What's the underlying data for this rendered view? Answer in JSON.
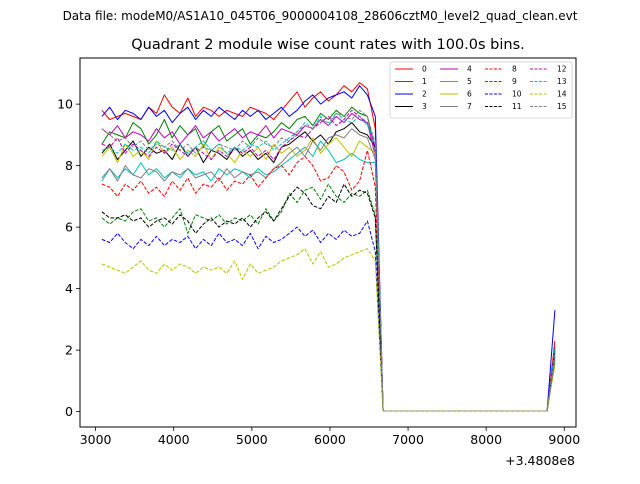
{
  "header": {
    "file_label": "Data file: modeM0/AS1A10_045T06_9000004108_28606cztM0_level2_quad_clean.evt"
  },
  "chart_data": {
    "type": "line",
    "title": "Quadrant 2 module wise count rates with 100.0s bins.",
    "xlabel": "",
    "ylabel": "",
    "x_offset_label": "+3.4808e8",
    "xlim": [
      2800,
      9150
    ],
    "ylim": [
      -0.5,
      11.5
    ],
    "xticks": [
      3000,
      4000,
      5000,
      6000,
      7000,
      8000,
      9000
    ],
    "xtick_labels": [
      "3000",
      "4000",
      "5000",
      "6000",
      "7000",
      "8000",
      "9000"
    ],
    "yticks": [
      0,
      2,
      4,
      6,
      8,
      10
    ],
    "ytick_labels": [
      "0",
      "2",
      "4",
      "6",
      "8",
      "10"
    ],
    "grid": false,
    "legend_placement": "upper-right, 4 columns",
    "x": [
      3080,
      3180,
      3280,
      3380,
      3480,
      3580,
      3680,
      3780,
      3880,
      3980,
      4080,
      4180,
      4280,
      4380,
      4480,
      4580,
      4680,
      4780,
      4880,
      4980,
      5080,
      5180,
      5280,
      5380,
      5480,
      5580,
      5680,
      5780,
      5880,
      5980,
      6080,
      6180,
      6280,
      6380,
      6480,
      6580,
      6680,
      6780,
      8780,
      8880
    ],
    "series": [
      {
        "name": "0",
        "color": "#ff0000",
        "dash": "solid",
        "values": [
          9.8,
          9.5,
          9.6,
          9.7,
          9.6,
          9.5,
          9.9,
          9.7,
          10.3,
          9.9,
          9.7,
          10.2,
          9.6,
          9.9,
          9.8,
          9.6,
          9.8,
          9.7,
          9.6,
          9.9,
          9.8,
          9.7,
          9.5,
          9.8,
          10.1,
          10.4,
          9.9,
          10.2,
          10.4,
          10.1,
          10.3,
          10.6,
          10.4,
          10.7,
          10.5,
          9.2,
          0.02,
          0.02,
          0.02,
          2.3
        ]
      },
      {
        "name": "1",
        "color": "#008000",
        "dash": "solid",
        "values": [
          8.7,
          9.1,
          9.0,
          8.9,
          9.4,
          9.2,
          8.7,
          9.0,
          9.5,
          8.9,
          9.3,
          9.0,
          9.2,
          8.6,
          9.1,
          9.3,
          8.8,
          9.0,
          9.2,
          8.7,
          9.0,
          8.9,
          9.1,
          9.4,
          9.2,
          9.5,
          9.6,
          9.3,
          9.7,
          9.5,
          9.8,
          9.6,
          9.9,
          9.7,
          9.6,
          8.5,
          0.02,
          0.02,
          0.02,
          2.1
        ]
      },
      {
        "name": "2",
        "color": "#0000ff",
        "dash": "solid",
        "values": [
          9.6,
          9.9,
          9.5,
          9.8,
          9.7,
          9.5,
          9.9,
          9.6,
          9.8,
          9.4,
          9.7,
          9.9,
          9.5,
          9.8,
          9.6,
          9.9,
          9.7,
          9.5,
          9.8,
          9.6,
          9.8,
          9.5,
          9.7,
          9.9,
          9.6,
          9.8,
          10.1,
          10.3,
          10.0,
          10.2,
          10.3,
          10.4,
          10.2,
          10.6,
          10.3,
          9.6,
          0.02,
          0.02,
          0.02,
          3.3
        ]
      },
      {
        "name": "3",
        "color": "#000000",
        "dash": "solid",
        "values": [
          8.4,
          8.7,
          8.2,
          8.5,
          8.8,
          8.3,
          8.6,
          8.4,
          8.5,
          8.2,
          8.7,
          8.3,
          8.6,
          8.1,
          8.5,
          8.4,
          8.2,
          8.6,
          8.3,
          8.5,
          8.2,
          8.4,
          8.1,
          8.6,
          8.7,
          8.9,
          9.1,
          8.8,
          9.0,
          8.7,
          9.1,
          9.2,
          9.4,
          9.1,
          9.0,
          8.6,
          0.02,
          0.02,
          0.02,
          1.8
        ]
      },
      {
        "name": "4",
        "color": "#bf00bf",
        "dash": "solid",
        "values": [
          9.2,
          9.0,
          9.3,
          8.9,
          9.1,
          9.0,
          8.8,
          9.2,
          8.9,
          9.1,
          8.7,
          9.0,
          9.3,
          8.9,
          9.1,
          8.8,
          9.0,
          9.2,
          8.9,
          9.1,
          9.0,
          9.3,
          8.9,
          9.2,
          9.1,
          9.0,
          9.3,
          9.2,
          9.5,
          9.3,
          9.6,
          9.4,
          9.7,
          9.5,
          9.4,
          8.3,
          0.02,
          0.02,
          0.02,
          2.0
        ]
      },
      {
        "name": "5",
        "color": "#00bfbf",
        "dash": "solid",
        "values": [
          7.5,
          7.9,
          7.6,
          7.9,
          7.7,
          8.1,
          7.7,
          7.9,
          7.6,
          7.8,
          7.6,
          7.9,
          7.7,
          7.8,
          7.5,
          7.9,
          7.7,
          7.9,
          7.8,
          7.6,
          7.9,
          7.7,
          7.8,
          8.0,
          8.2,
          8.4,
          8.6,
          8.3,
          8.8,
          8.5,
          8.1,
          8.2,
          8.4,
          8.2,
          8.1,
          8.1,
          0.02,
          0.02,
          0.02,
          1.9
        ]
      },
      {
        "name": "6",
        "color": "#bfbf00",
        "dash": "solid",
        "values": [
          8.3,
          8.6,
          8.1,
          8.7,
          8.3,
          8.5,
          8.2,
          8.8,
          8.4,
          8.6,
          8.2,
          8.5,
          8.3,
          8.7,
          8.2,
          8.6,
          8.4,
          8.1,
          8.5,
          8.3,
          8.6,
          8.2,
          8.7,
          8.4,
          8.6,
          8.3,
          8.5,
          8.9,
          8.4,
          8.7,
          8.9,
          8.6,
          8.3,
          8.8,
          8.6,
          8.4,
          0.02,
          0.02,
          0.02,
          1.7
        ]
      },
      {
        "name": "7",
        "color": "#808080",
        "dash": "solid",
        "values": [
          7.6,
          7.9,
          7.5,
          8.0,
          7.7,
          7.6,
          7.9,
          7.8,
          7.5,
          7.8,
          7.7,
          7.9,
          7.6,
          7.7,
          7.8,
          7.5,
          7.9,
          7.6,
          7.8,
          7.7,
          7.8,
          7.6,
          7.9,
          8.1,
          8.4,
          8.6,
          8.3,
          8.8,
          8.5,
          8.9,
          9.0,
          8.9,
          9.2,
          9.0,
          8.9,
          8.2,
          0.02,
          0.02,
          0.02,
          1.6
        ]
      },
      {
        "name": "8",
        "color": "#ff0000",
        "dash": "dashed",
        "values": [
          7.4,
          7.3,
          7.0,
          7.4,
          7.2,
          7.5,
          7.1,
          7.3,
          7.0,
          7.5,
          7.2,
          7.6,
          7.1,
          7.4,
          7.3,
          7.6,
          7.2,
          7.5,
          7.4,
          7.7,
          7.3,
          7.6,
          7.9,
          8.0,
          7.7,
          8.1,
          8.3,
          8.0,
          7.5,
          7.6,
          8.0,
          7.8,
          7.2,
          7.5,
          8.5,
          7.3,
          0.02,
          0.02,
          0.02,
          1.9
        ]
      },
      {
        "name": "9",
        "color": "#008000",
        "dash": "dashed",
        "values": [
          6.3,
          6.1,
          6.3,
          6.2,
          6.5,
          6.6,
          6.2,
          6.3,
          6.0,
          6.3,
          6.6,
          5.8,
          6.4,
          6.3,
          6.2,
          6.4,
          6.1,
          6.3,
          6.2,
          6.4,
          6.1,
          6.6,
          6.2,
          6.5,
          7.1,
          6.8,
          7.2,
          7.3,
          6.9,
          7.4,
          7.0,
          6.8,
          7.1,
          7.0,
          7.2,
          6.4,
          0.02,
          0.02,
          0.02,
          1.7
        ]
      },
      {
        "name": "10",
        "color": "#0000ff",
        "dash": "dashed",
        "values": [
          5.6,
          5.5,
          5.8,
          5.5,
          5.3,
          5.6,
          5.4,
          5.7,
          5.4,
          5.6,
          5.5,
          5.7,
          5.3,
          5.6,
          5.4,
          5.8,
          5.5,
          5.6,
          5.4,
          5.8,
          5.3,
          5.7,
          5.5,
          5.6,
          5.8,
          6.0,
          5.7,
          5.9,
          5.5,
          5.8,
          5.6,
          5.9,
          5.7,
          5.8,
          6.2,
          5.2,
          0.02,
          0.02,
          0.02,
          1.9
        ]
      },
      {
        "name": "11",
        "color": "#000000",
        "dash": "dashed",
        "values": [
          6.5,
          6.3,
          6.3,
          6.4,
          6.2,
          6.3,
          6.0,
          6.2,
          6.3,
          6.1,
          6.4,
          6.2,
          5.8,
          6.1,
          6.3,
          6.0,
          6.2,
          6.1,
          6.3,
          6.0,
          6.3,
          6.5,
          6.2,
          6.6,
          7.0,
          7.3,
          7.1,
          6.7,
          6.6,
          7.0,
          6.8,
          7.4,
          7.0,
          7.2,
          7.1,
          6.3,
          0.02,
          0.02,
          0.02,
          2.0
        ]
      },
      {
        "name": "12",
        "color": "#bf00bf",
        "dash": "dashed",
        "values": [
          8.7,
          8.6,
          8.9,
          8.4,
          8.7,
          8.5,
          8.3,
          8.6,
          8.4,
          8.7,
          8.5,
          8.3,
          8.6,
          8.4,
          8.2,
          8.5,
          8.3,
          8.6,
          8.4,
          8.6,
          8.3,
          8.5,
          8.2,
          8.6,
          8.8,
          9.0,
          8.9,
          9.2,
          9.4,
          9.6,
          9.3,
          9.5,
          9.8,
          9.6,
          9.4,
          8.6,
          0.02,
          0.02,
          0.02,
          2.1
        ]
      },
      {
        "name": "13",
        "color": "#00bfbf",
        "dash": "dashed",
        "values": [
          8.5,
          8.6,
          8.4,
          8.7,
          8.5,
          8.6,
          8.4,
          8.8,
          8.6,
          8.5,
          8.7,
          8.4,
          8.6,
          8.8,
          8.5,
          8.7,
          8.4,
          8.6,
          8.5,
          8.7,
          8.6,
          8.8,
          8.5,
          8.7,
          8.9,
          9.1,
          9.4,
          9.2,
          9.6,
          9.3,
          9.7,
          9.5,
          9.4,
          9.6,
          9.3,
          8.8,
          0.02,
          0.02,
          0.02,
          2.0
        ]
      },
      {
        "name": "14",
        "color": "#bfbf00",
        "dash": "dashed",
        "values": [
          4.8,
          4.7,
          4.6,
          4.5,
          4.7,
          4.9,
          4.6,
          4.5,
          4.8,
          4.6,
          4.8,
          4.7,
          4.5,
          4.7,
          4.6,
          4.7,
          4.5,
          4.9,
          4.3,
          4.8,
          4.5,
          4.6,
          4.7,
          4.9,
          5.0,
          5.1,
          5.3,
          4.8,
          5.2,
          4.7,
          4.8,
          5.0,
          5.1,
          5.2,
          5.3,
          4.9,
          0.02,
          0.02,
          0.02,
          1.5
        ]
      },
      {
        "name": "15",
        "color": "#808080",
        "dash": "dashed",
        "values": [
          9.2,
          9.0,
          8.8,
          8.9,
          8.6,
          8.8,
          8.5,
          8.7,
          8.6,
          8.8,
          8.5,
          8.7,
          8.4,
          8.6,
          8.5,
          8.7,
          8.6,
          8.5,
          8.8,
          8.6,
          8.9,
          8.7,
          8.6,
          8.9,
          8.8,
          9.1,
          9.3,
          9.2,
          9.5,
          9.4,
          9.7,
          9.6,
          9.5,
          9.8,
          9.6,
          8.7,
          0.02,
          0.02,
          0.02,
          1.8
        ]
      }
    ]
  }
}
